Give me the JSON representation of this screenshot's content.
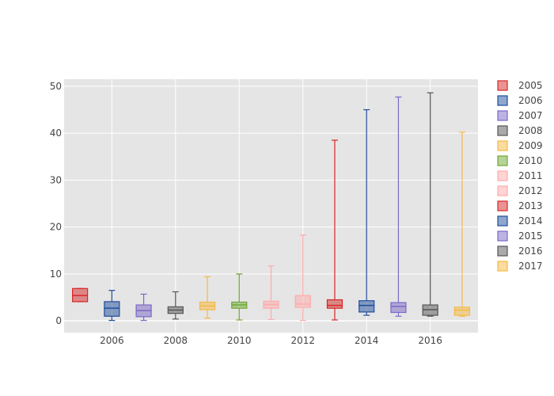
{
  "chart_data": {
    "type": "box",
    "title": "",
    "xlabel": "",
    "ylabel": "",
    "xlim": [
      2004.5,
      2017.5
    ],
    "ylim": [
      -2.5,
      51.5
    ],
    "x_ticks": [
      2006,
      2008,
      2010,
      2012,
      2014,
      2016
    ],
    "y_ticks": [
      0,
      10,
      20,
      30,
      40,
      50
    ],
    "grid": true,
    "legend_position": "right",
    "series": [
      {
        "name": "2005",
        "x": 2005,
        "min": 4.1,
        "q1": 4.1,
        "median": 5.4,
        "q3": 6.9,
        "max": 6.9,
        "color": "#d62728"
      },
      {
        "name": "2006",
        "x": 2006,
        "min": 0.1,
        "q1": 1.0,
        "median": 2.7,
        "q3": 4.1,
        "max": 6.5,
        "color": "#1f4e9c"
      },
      {
        "name": "2007",
        "x": 2007,
        "min": 0.1,
        "q1": 0.9,
        "median": 2.2,
        "q3": 3.4,
        "max": 5.7,
        "color": "#7b68c8"
      },
      {
        "name": "2008",
        "x": 2008,
        "min": 0.4,
        "q1": 1.6,
        "median": 2.3,
        "q3": 3.0,
        "max": 6.2,
        "color": "#555555"
      },
      {
        "name": "2009",
        "x": 2009,
        "min": 0.6,
        "q1": 2.4,
        "median": 3.2,
        "q3": 4.0,
        "max": 9.4,
        "color": "#f5b942"
      },
      {
        "name": "2010",
        "x": 2010,
        "min": 0.2,
        "q1": 2.7,
        "median": 3.4,
        "q3": 4.0,
        "max": 10.0,
        "color": "#6ea832"
      },
      {
        "name": "2011",
        "x": 2011,
        "min": 0.3,
        "q1": 2.7,
        "median": 3.5,
        "q3": 4.2,
        "max": 11.7,
        "color": "#ffaaaa"
      },
      {
        "name": "2012",
        "x": 2012,
        "min": 0.1,
        "q1": 2.9,
        "median": 3.6,
        "q3": 5.4,
        "max": 18.3,
        "color": "#ffaaaa"
      },
      {
        "name": "2013",
        "x": 2013,
        "min": 0.2,
        "q1": 2.7,
        "median": 3.3,
        "q3": 4.5,
        "max": 38.5,
        "color": "#d62728"
      },
      {
        "name": "2014",
        "x": 2014,
        "min": 1.2,
        "q1": 1.9,
        "median": 3.3,
        "q3": 4.3,
        "max": 45.0,
        "color": "#1f4e9c"
      },
      {
        "name": "2015",
        "x": 2015,
        "min": 1.0,
        "q1": 1.8,
        "median": 3.1,
        "q3": 3.9,
        "max": 47.7,
        "color": "#7b68c8"
      },
      {
        "name": "2016",
        "x": 2016,
        "min": 1.0,
        "q1": 1.2,
        "median": 2.4,
        "q3": 3.4,
        "max": 48.6,
        "color": "#555555"
      },
      {
        "name": "2017",
        "x": 2017,
        "min": 1.0,
        "q1": 1.2,
        "median": 2.3,
        "q3": 2.9,
        "max": 40.2,
        "color": "#f5b942"
      }
    ]
  }
}
